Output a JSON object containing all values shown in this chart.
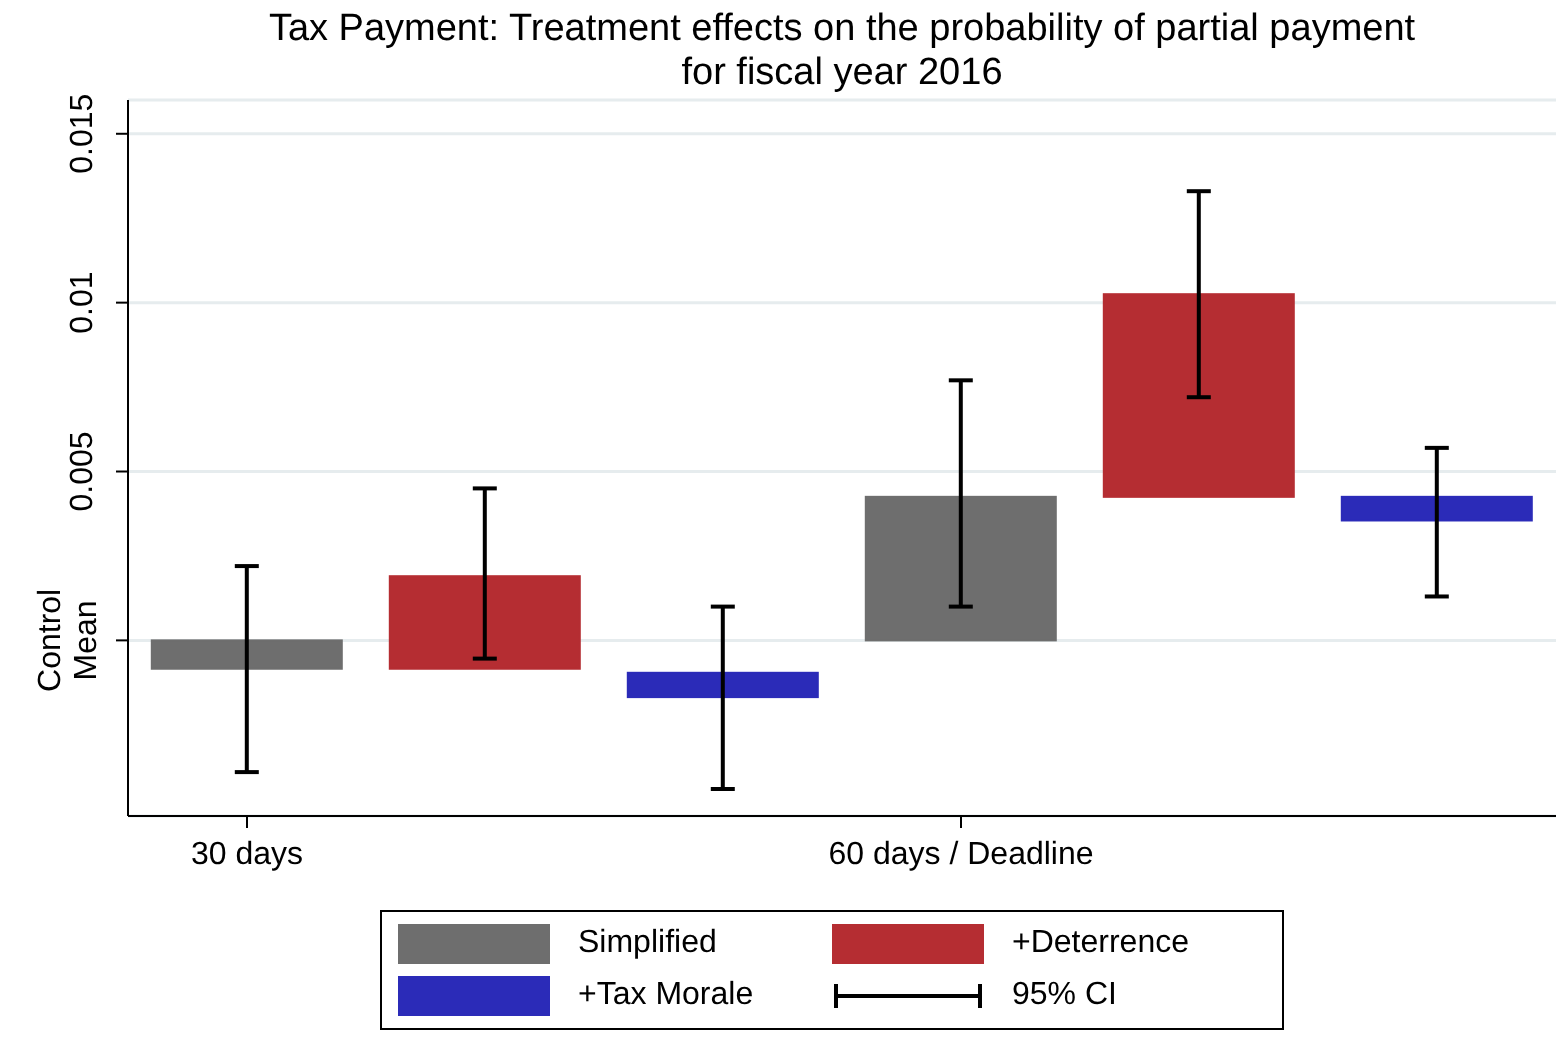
{
  "chart_data": {
    "type": "bar",
    "title": "Tax Payment: Treatment effects on the probability of partial payment\nfor fiscal year 2016",
    "categories": [
      "30 days",
      null,
      null,
      "60 days / Deadline",
      null,
      null
    ],
    "series": [
      {
        "name": "Simplified",
        "color": "#6e6e6e",
        "values": [
          -0.00084,
          null,
          null,
          0.00425,
          null,
          null
        ],
        "base": [
          0,
          null,
          null,
          0,
          null,
          null
        ],
        "errors": [
          [
            -0.0039,
            0.0022
          ],
          null,
          null,
          [
            0.001,
            0.0077
          ],
          null,
          null
        ]
      },
      {
        "name": "+Deterrence",
        "color": "#b52d32",
        "values": [
          null,
          0.00274,
          null,
          null,
          0.006,
          null
        ],
        "base": [
          null,
          -0.00084,
          null,
          null,
          0.00425,
          null
        ],
        "errors": [
          null,
          [
            -0.00054,
            0.0045
          ],
          null,
          null,
          [
            0.0072,
            0.0133
          ],
          null
        ]
      },
      {
        "name": "+Tax Morale",
        "color": "#2b2bb8",
        "values": [
          null,
          null,
          -0.00072,
          null,
          null,
          -0.0007
        ],
        "base": [
          null,
          null,
          -0.00096,
          null,
          null,
          0.00425
        ],
        "errors": [
          null,
          null,
          [
            -0.0044,
            0.001
          ],
          null,
          null,
          [
            0.0013,
            0.0057
          ]
        ]
      }
    ],
    "ylim": [
      -0.0052,
      0.016
    ],
    "yticks": [
      {
        "value": 0,
        "label": "Control Mean"
      },
      0.005,
      0.01,
      0.015
    ],
    "grid": "y",
    "legend": "bottom",
    "annotations": [
      "95% CI"
    ]
  }
}
